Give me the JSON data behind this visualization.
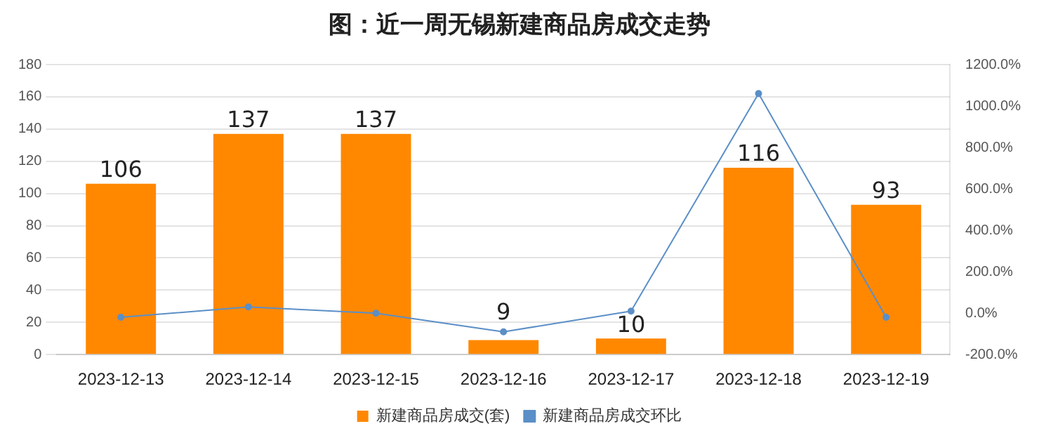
{
  "chart_data": {
    "type": "bar",
    "title": "图：近一周无锡新建商品房成交走势",
    "categories": [
      "2023-12-13",
      "2023-12-14",
      "2023-12-15",
      "2023-12-16",
      "2023-12-17",
      "2023-12-18",
      "2023-12-19"
    ],
    "series": [
      {
        "name": "新建商品房成交(套)",
        "type": "bar",
        "color": "#ff8800",
        "values": [
          106,
          137,
          137,
          9,
          10,
          116,
          93
        ],
        "value_labels": [
          "106",
          "137",
          "137",
          "9",
          "10",
          "116",
          "93"
        ]
      },
      {
        "name": "新建商品房成交环比",
        "type": "line",
        "axis": "y2",
        "color": "#5b8fc7",
        "values": [
          -20,
          30,
          0,
          -90,
          10,
          1060,
          -20
        ]
      }
    ],
    "ylim": [
      0,
      180
    ],
    "yticks": [
      0,
      20,
      40,
      60,
      80,
      100,
      120,
      140,
      160,
      180
    ],
    "y2lim": [
      -200,
      1200
    ],
    "y2ticks": [
      {
        "value": -200,
        "label": "-200.0%"
      },
      {
        "value": 0,
        "label": "0.0%"
      },
      {
        "value": 200,
        "label": "200.0%"
      },
      {
        "value": 400,
        "label": "400.0%"
      },
      {
        "value": 600,
        "label": "600.0%"
      },
      {
        "value": 800,
        "label": "800.0%"
      },
      {
        "value": 1000,
        "label": "1000.0%"
      },
      {
        "value": 1200,
        "label": "1200.0%"
      }
    ],
    "grid": "y",
    "legend": "bottom",
    "marker": "circle"
  }
}
